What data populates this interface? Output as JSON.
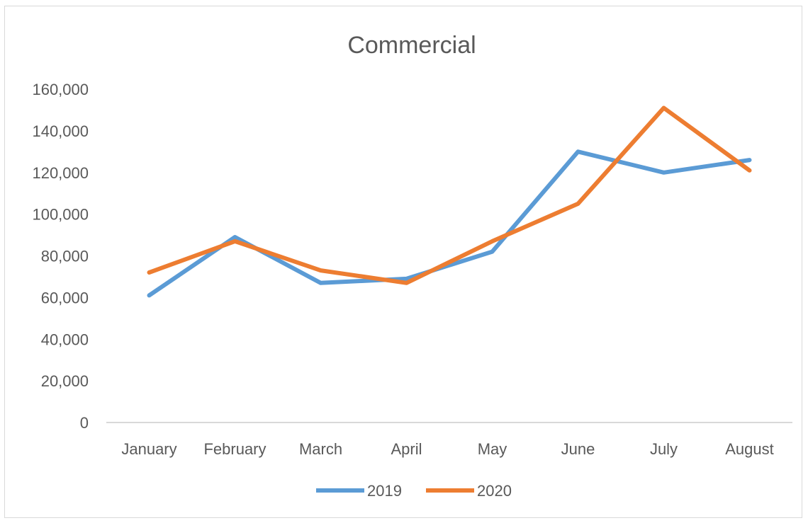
{
  "chart_data": {
    "type": "line",
    "title": "Commercial",
    "categories": [
      "January",
      "February",
      "March",
      "April",
      "May",
      "June",
      "July",
      "August"
    ],
    "y_ticks": [
      "0",
      "20,000",
      "40,000",
      "60,000",
      "80,000",
      "100,000",
      "120,000",
      "140,000",
      "160,000"
    ],
    "ylim": [
      0,
      160000
    ],
    "grid": false,
    "legend_position": "bottom",
    "series": [
      {
        "name": "2019",
        "color": "#5B9BD5",
        "values": [
          61000,
          89000,
          67000,
          69000,
          82000,
          130000,
          120000,
          126000
        ]
      },
      {
        "name": "2020",
        "color": "#ED7D31",
        "values": [
          72000,
          87000,
          73000,
          67000,
          87000,
          105000,
          151000,
          121000
        ]
      }
    ]
  }
}
